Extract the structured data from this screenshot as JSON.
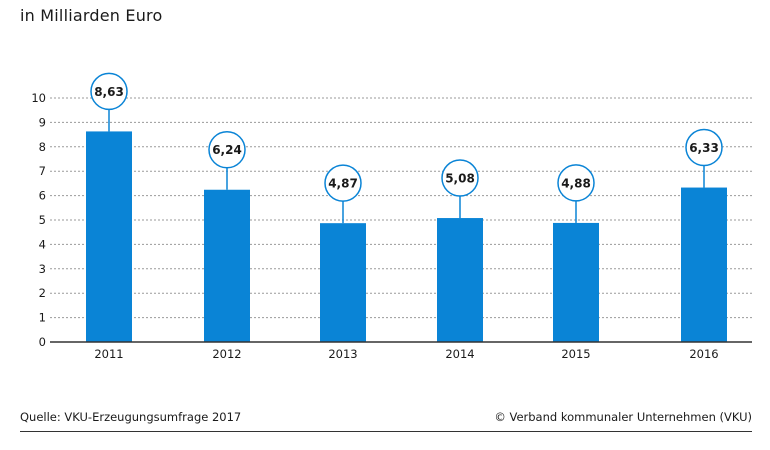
{
  "chart_data": {
    "type": "bar",
    "title": "",
    "unit_label": "in Milliarden Euro",
    "xlabel": "",
    "ylabel": "",
    "categories": [
      "2011",
      "2012",
      "2013",
      "2014",
      "2015",
      "2016"
    ],
    "values": [
      8.63,
      6.24,
      4.87,
      5.08,
      4.88,
      6.33
    ],
    "value_labels": [
      "8,63",
      "6,24",
      "4,87",
      "5,08",
      "4,88",
      "6,33"
    ],
    "ylim": [
      0,
      10
    ],
    "yticks": [
      "0",
      "1",
      "2",
      "3",
      "4",
      "5",
      "6",
      "7",
      "8",
      "9",
      "10"
    ],
    "grid": true,
    "legend": "none"
  },
  "footer": {
    "source": "Quelle: VKU-Erzeugungsumfrage 2017",
    "copyright": "© Verband kommunaler Unternehmen (VKU)"
  },
  "colors": {
    "bar": "#0a84d6",
    "grid": "#9a9a9a",
    "axis": "#333333",
    "bubble_stroke": "#0a84d6",
    "text": "#1a1a1a"
  }
}
